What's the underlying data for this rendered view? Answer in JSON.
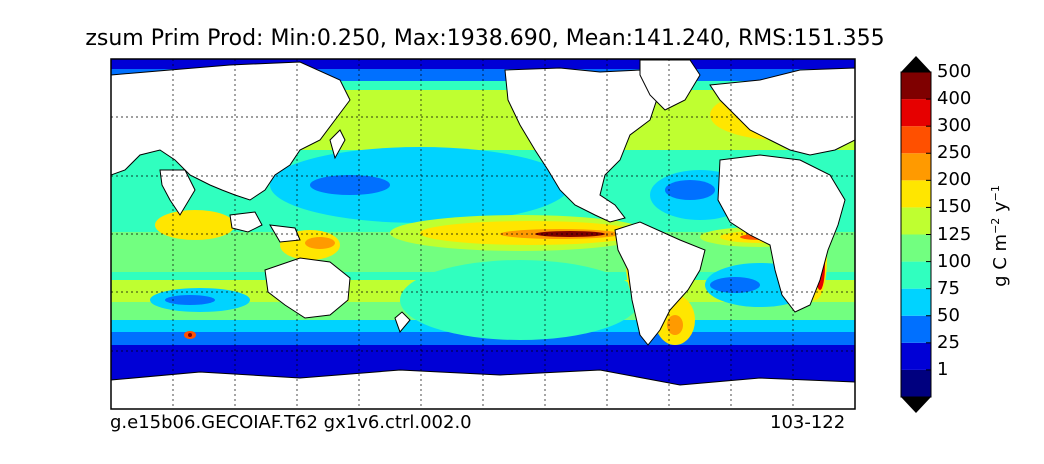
{
  "title": "zsum Prim Prod: Min:0.250, Max:1938.690, Mean:141.240, RMS:151.355",
  "caption_left": "g.e15b06.GECOIAF.T62 gx1v6.ctrl.002.0",
  "caption_right": "103-122",
  "colorbar": {
    "unit_text": "g C m",
    "unit_exp1": "−2",
    "unit_mid": " y",
    "unit_exp2": "−1",
    "ticks": [
      "1",
      "25",
      "50",
      "75",
      "100",
      "125",
      "150",
      "200",
      "250",
      "300",
      "400",
      "500"
    ],
    "colors": [
      "#00007f",
      "#0000d6",
      "#0070ff",
      "#00d3ff",
      "#30ffbf",
      "#72ff80",
      "#bfff30",
      "#ffe600",
      "#ff9a00",
      "#ff5000",
      "#e60000",
      "#7f0000"
    ]
  },
  "map": {
    "land_color": "#ffffff",
    "grid": true
  }
}
